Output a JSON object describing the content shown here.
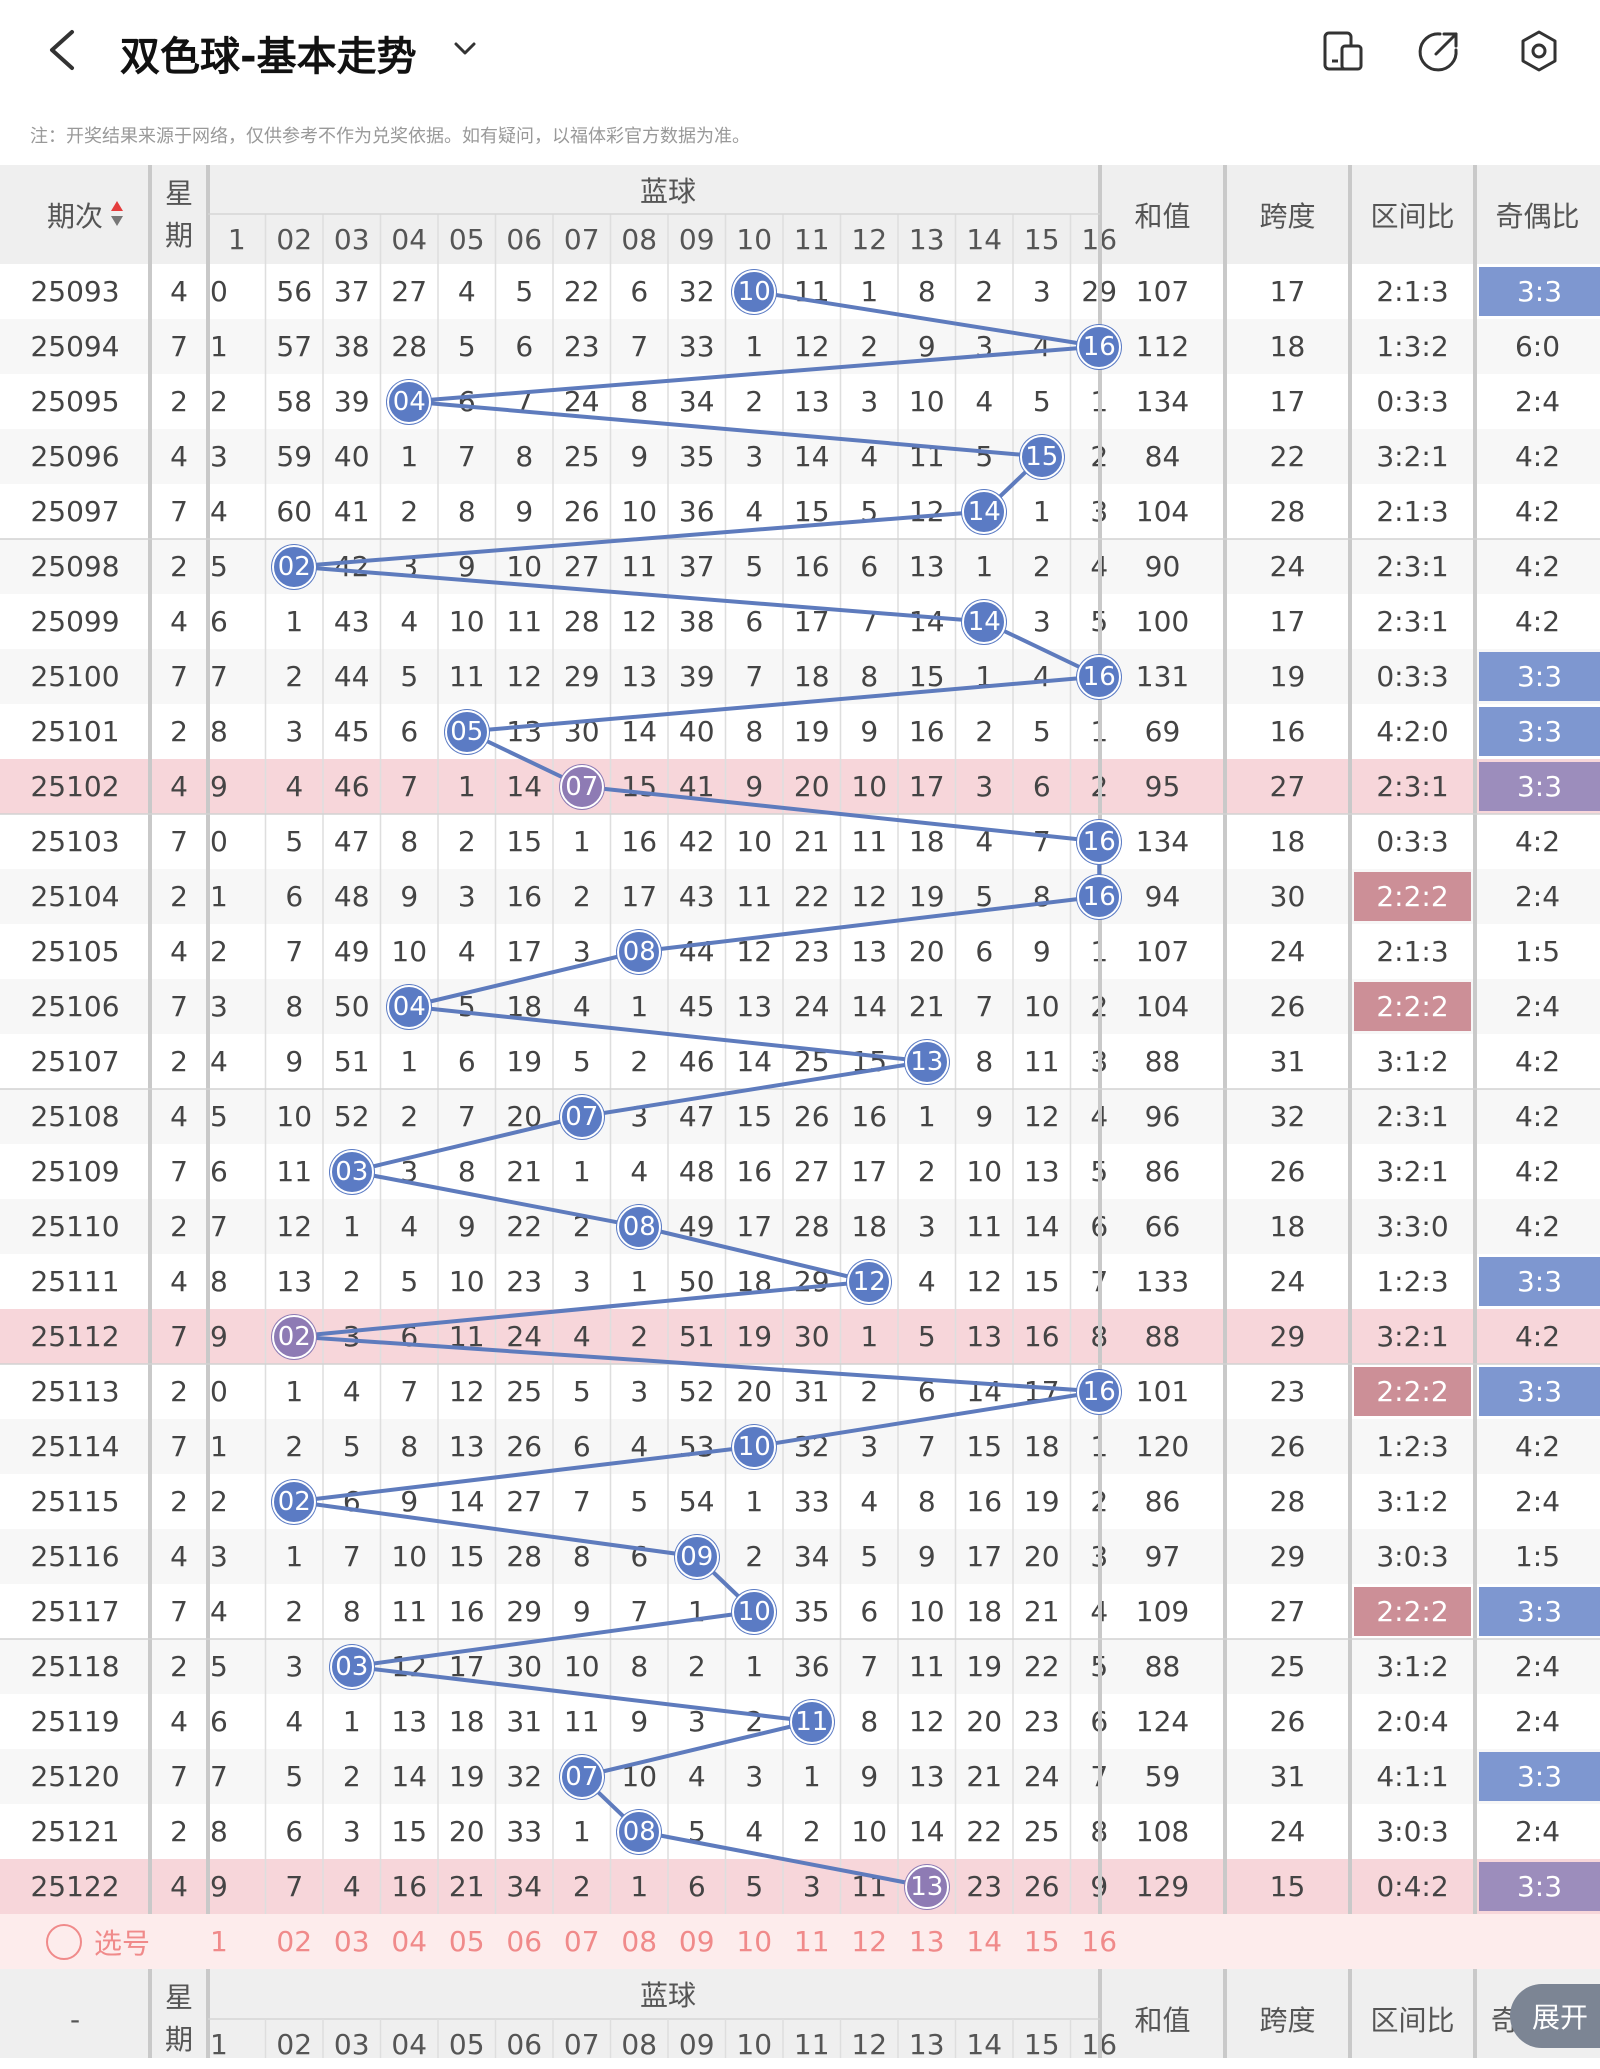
{
  "header": {
    "title": "双色球-基本走势",
    "icons": [
      "back-icon",
      "chevron-down-icon",
      "layout-icon",
      "share-icon",
      "settings-icon"
    ]
  },
  "note": "注：开奖结果来源于网络，仅供参考不作为兑奖依据。如有疑问，以福体彩官方数据为准。",
  "table": {
    "col_issue": "期次",
    "col_week": "星期",
    "blue_title": "蓝球",
    "ball_labels": [
      "1",
      "02",
      "03",
      "04",
      "05",
      "06",
      "07",
      "08",
      "09",
      "10",
      "11",
      "12",
      "13",
      "14",
      "15",
      "16"
    ],
    "col_sum": "和值",
    "col_span": "跨度",
    "col_zone": "区间比",
    "col_oddeven": "奇偶比",
    "rows": [
      {
        "issue": "25093",
        "week": "4",
        "cells": [
          "0",
          "56",
          "37",
          "27",
          "4",
          "5",
          "22",
          "6",
          "32",
          "10",
          "11",
          "1",
          "8",
          "2",
          "3",
          "29"
        ],
        "ball": 10,
        "sum": "107",
        "span": "17",
        "zone": "2:1:3",
        "oe": "3:3",
        "oe_hl": true,
        "zone_hl": false,
        "pink": false
      },
      {
        "issue": "25094",
        "week": "7",
        "cells": [
          "1",
          "57",
          "38",
          "28",
          "5",
          "6",
          "23",
          "7",
          "33",
          "1",
          "12",
          "2",
          "9",
          "3",
          "4",
          "16"
        ],
        "ball": 16,
        "sum": "112",
        "span": "18",
        "zone": "1:3:2",
        "oe": "6:0",
        "oe_hl": false,
        "zone_hl": false,
        "pink": false
      },
      {
        "issue": "25095",
        "week": "2",
        "cells": [
          "2",
          "58",
          "39",
          "04",
          "6",
          "7",
          "24",
          "8",
          "34",
          "2",
          "13",
          "3",
          "10",
          "4",
          "5",
          "1"
        ],
        "ball": 4,
        "sum": "134",
        "span": "17",
        "zone": "0:3:3",
        "oe": "2:4",
        "oe_hl": false,
        "zone_hl": false,
        "pink": false
      },
      {
        "issue": "25096",
        "week": "4",
        "cells": [
          "3",
          "59",
          "40",
          "1",
          "7",
          "8",
          "25",
          "9",
          "35",
          "3",
          "14",
          "4",
          "11",
          "5",
          "15",
          "2"
        ],
        "ball": 15,
        "sum": "84",
        "span": "22",
        "zone": "3:2:1",
        "oe": "4:2",
        "oe_hl": false,
        "zone_hl": false,
        "pink": false
      },
      {
        "issue": "25097",
        "week": "7",
        "cells": [
          "4",
          "60",
          "41",
          "2",
          "8",
          "9",
          "26",
          "10",
          "36",
          "4",
          "15",
          "5",
          "12",
          "14",
          "1",
          "3"
        ],
        "ball": 14,
        "sum": "104",
        "span": "28",
        "zone": "2:1:3",
        "oe": "4:2",
        "oe_hl": false,
        "zone_hl": false,
        "pink": false
      },
      {
        "issue": "25098",
        "week": "2",
        "cells": [
          "5",
          "02",
          "42",
          "3",
          "9",
          "10",
          "27",
          "11",
          "37",
          "5",
          "16",
          "6",
          "13",
          "1",
          "2",
          "4"
        ],
        "ball": 2,
        "sum": "90",
        "span": "24",
        "zone": "2:3:1",
        "oe": "4:2",
        "oe_hl": false,
        "zone_hl": false,
        "pink": false
      },
      {
        "issue": "25099",
        "week": "4",
        "cells": [
          "6",
          "1",
          "43",
          "4",
          "10",
          "11",
          "28",
          "12",
          "38",
          "6",
          "17",
          "7",
          "14",
          "14",
          "3",
          "5"
        ],
        "ball": 14,
        "sum": "100",
        "span": "17",
        "zone": "2:3:1",
        "oe": "4:2",
        "oe_hl": false,
        "zone_hl": false,
        "pink": false
      },
      {
        "issue": "25100",
        "week": "7",
        "cells": [
          "7",
          "2",
          "44",
          "5",
          "11",
          "12",
          "29",
          "13",
          "39",
          "7",
          "18",
          "8",
          "15",
          "1",
          "4",
          "16"
        ],
        "ball": 16,
        "sum": "131",
        "span": "19",
        "zone": "0:3:3",
        "oe": "3:3",
        "oe_hl": true,
        "zone_hl": false,
        "pink": false
      },
      {
        "issue": "25101",
        "week": "2",
        "cells": [
          "8",
          "3",
          "45",
          "6",
          "05",
          "13",
          "30",
          "14",
          "40",
          "8",
          "19",
          "9",
          "16",
          "2",
          "5",
          "1"
        ],
        "ball": 5,
        "sum": "69",
        "span": "16",
        "zone": "4:2:0",
        "oe": "3:3",
        "oe_hl": true,
        "zone_hl": false,
        "pink": false
      },
      {
        "issue": "25102",
        "week": "4",
        "cells": [
          "9",
          "4",
          "46",
          "7",
          "1",
          "14",
          "07",
          "15",
          "41",
          "9",
          "20",
          "10",
          "17",
          "3",
          "6",
          "2"
        ],
        "ball": 7,
        "sum": "95",
        "span": "27",
        "zone": "2:3:1",
        "oe": "3:3",
        "oe_hl": true,
        "zone_hl": false,
        "pink": true
      },
      {
        "issue": "25103",
        "week": "7",
        "cells": [
          "0",
          "5",
          "47",
          "8",
          "2",
          "15",
          "1",
          "16",
          "42",
          "10",
          "21",
          "11",
          "18",
          "4",
          "7",
          "16"
        ],
        "ball": 16,
        "sum": "134",
        "span": "18",
        "zone": "0:3:3",
        "oe": "4:2",
        "oe_hl": false,
        "zone_hl": false,
        "pink": false
      },
      {
        "issue": "25104",
        "week": "2",
        "cells": [
          "1",
          "6",
          "48",
          "9",
          "3",
          "16",
          "2",
          "17",
          "43",
          "11",
          "22",
          "12",
          "19",
          "5",
          "8",
          "16"
        ],
        "ball": 16,
        "sum": "94",
        "span": "30",
        "zone": "2:2:2",
        "oe": "2:4",
        "oe_hl": false,
        "zone_hl": true,
        "pink": false
      },
      {
        "issue": "25105",
        "week": "4",
        "cells": [
          "2",
          "7",
          "49",
          "10",
          "4",
          "17",
          "3",
          "08",
          "44",
          "12",
          "23",
          "13",
          "20",
          "6",
          "9",
          "1"
        ],
        "ball": 8,
        "sum": "107",
        "span": "24",
        "zone": "2:1:3",
        "oe": "1:5",
        "oe_hl": false,
        "zone_hl": false,
        "pink": false
      },
      {
        "issue": "25106",
        "week": "7",
        "cells": [
          "3",
          "8",
          "50",
          "04",
          "5",
          "18",
          "4",
          "1",
          "45",
          "13",
          "24",
          "14",
          "21",
          "7",
          "10",
          "2"
        ],
        "ball": 4,
        "sum": "104",
        "span": "26",
        "zone": "2:2:2",
        "oe": "2:4",
        "oe_hl": false,
        "zone_hl": true,
        "pink": false
      },
      {
        "issue": "25107",
        "week": "2",
        "cells": [
          "4",
          "9",
          "51",
          "1",
          "6",
          "19",
          "5",
          "2",
          "46",
          "14",
          "25",
          "15",
          "13",
          "8",
          "11",
          "3"
        ],
        "ball": 13,
        "sum": "88",
        "span": "31",
        "zone": "3:1:2",
        "oe": "4:2",
        "oe_hl": false,
        "zone_hl": false,
        "pink": false
      },
      {
        "issue": "25108",
        "week": "4",
        "cells": [
          "5",
          "10",
          "52",
          "2",
          "7",
          "20",
          "07",
          "3",
          "47",
          "15",
          "26",
          "16",
          "1",
          "9",
          "12",
          "4"
        ],
        "ball": 7,
        "sum": "96",
        "span": "32",
        "zone": "2:3:1",
        "oe": "4:2",
        "oe_hl": false,
        "zone_hl": false,
        "pink": false
      },
      {
        "issue": "25109",
        "week": "7",
        "cells": [
          "6",
          "11",
          "03",
          "3",
          "8",
          "21",
          "1",
          "4",
          "48",
          "16",
          "27",
          "17",
          "2",
          "10",
          "13",
          "5"
        ],
        "ball": 3,
        "sum": "86",
        "span": "26",
        "zone": "3:2:1",
        "oe": "4:2",
        "oe_hl": false,
        "zone_hl": false,
        "pink": false
      },
      {
        "issue": "25110",
        "week": "2",
        "cells": [
          "7",
          "12",
          "1",
          "4",
          "9",
          "22",
          "2",
          "08",
          "49",
          "17",
          "28",
          "18",
          "3",
          "11",
          "14",
          "6"
        ],
        "ball": 8,
        "sum": "66",
        "span": "18",
        "zone": "3:3:0",
        "oe": "4:2",
        "oe_hl": false,
        "zone_hl": false,
        "pink": false
      },
      {
        "issue": "25111",
        "week": "4",
        "cells": [
          "8",
          "13",
          "2",
          "5",
          "10",
          "23",
          "3",
          "1",
          "50",
          "18",
          "29",
          "12",
          "4",
          "12",
          "15",
          "7"
        ],
        "ball": 12,
        "sum": "133",
        "span": "24",
        "zone": "1:2:3",
        "oe": "3:3",
        "oe_hl": true,
        "zone_hl": false,
        "pink": false
      },
      {
        "issue": "25112",
        "week": "7",
        "cells": [
          "9",
          "02",
          "3",
          "6",
          "11",
          "24",
          "4",
          "2",
          "51",
          "19",
          "30",
          "1",
          "5",
          "13",
          "16",
          "8"
        ],
        "ball": 2,
        "sum": "88",
        "span": "29",
        "zone": "3:2:1",
        "oe": "4:2",
        "oe_hl": false,
        "zone_hl": false,
        "pink": true
      },
      {
        "issue": "25113",
        "week": "2",
        "cells": [
          "0",
          "1",
          "4",
          "7",
          "12",
          "25",
          "5",
          "3",
          "52",
          "20",
          "31",
          "2",
          "6",
          "14",
          "17",
          "16"
        ],
        "ball": 16,
        "sum": "101",
        "span": "23",
        "zone": "2:2:2",
        "oe": "3:3",
        "oe_hl": true,
        "zone_hl": true,
        "pink": false
      },
      {
        "issue": "25114",
        "week": "7",
        "cells": [
          "1",
          "2",
          "5",
          "8",
          "13",
          "26",
          "6",
          "4",
          "53",
          "10",
          "32",
          "3",
          "7",
          "15",
          "18",
          "1"
        ],
        "ball": 10,
        "sum": "120",
        "span": "26",
        "zone": "1:2:3",
        "oe": "4:2",
        "oe_hl": false,
        "zone_hl": false,
        "pink": false
      },
      {
        "issue": "25115",
        "week": "2",
        "cells": [
          "2",
          "02",
          "6",
          "9",
          "14",
          "27",
          "7",
          "5",
          "54",
          "1",
          "33",
          "4",
          "8",
          "16",
          "19",
          "2"
        ],
        "ball": 2,
        "sum": "86",
        "span": "28",
        "zone": "3:1:2",
        "oe": "2:4",
        "oe_hl": false,
        "zone_hl": false,
        "pink": false
      },
      {
        "issue": "25116",
        "week": "4",
        "cells": [
          "3",
          "1",
          "7",
          "10",
          "15",
          "28",
          "8",
          "6",
          "09",
          "2",
          "34",
          "5",
          "9",
          "17",
          "20",
          "3"
        ],
        "ball": 9,
        "sum": "97",
        "span": "29",
        "zone": "3:0:3",
        "oe": "1:5",
        "oe_hl": false,
        "zone_hl": false,
        "pink": false
      },
      {
        "issue": "25117",
        "week": "7",
        "cells": [
          "4",
          "2",
          "8",
          "11",
          "16",
          "29",
          "9",
          "7",
          "1",
          "10",
          "35",
          "6",
          "10",
          "18",
          "21",
          "4"
        ],
        "ball": 10,
        "sum": "109",
        "span": "27",
        "zone": "2:2:2",
        "oe": "3:3",
        "oe_hl": true,
        "zone_hl": true,
        "pink": false
      },
      {
        "issue": "25118",
        "week": "2",
        "cells": [
          "5",
          "3",
          "03",
          "12",
          "17",
          "30",
          "10",
          "8",
          "2",
          "1",
          "36",
          "7",
          "11",
          "19",
          "22",
          "5"
        ],
        "ball": 3,
        "sum": "88",
        "span": "25",
        "zone": "3:1:2",
        "oe": "2:4",
        "oe_hl": false,
        "zone_hl": false,
        "pink": false
      },
      {
        "issue": "25119",
        "week": "4",
        "cells": [
          "6",
          "4",
          "1",
          "13",
          "18",
          "31",
          "11",
          "9",
          "3",
          "2",
          "11",
          "8",
          "12",
          "20",
          "23",
          "6"
        ],
        "ball": 11,
        "sum": "124",
        "span": "26",
        "zone": "2:0:4",
        "oe": "2:4",
        "oe_hl": false,
        "zone_hl": false,
        "pink": false
      },
      {
        "issue": "25120",
        "week": "7",
        "cells": [
          "7",
          "5",
          "2",
          "14",
          "19",
          "32",
          "07",
          "10",
          "4",
          "3",
          "1",
          "9",
          "13",
          "21",
          "24",
          "7"
        ],
        "ball": 7,
        "sum": "59",
        "span": "31",
        "zone": "4:1:1",
        "oe": "3:3",
        "oe_hl": true,
        "zone_hl": false,
        "pink": false
      },
      {
        "issue": "25121",
        "week": "2",
        "cells": [
          "8",
          "6",
          "3",
          "15",
          "20",
          "33",
          "1",
          "08",
          "5",
          "4",
          "2",
          "10",
          "14",
          "22",
          "25",
          "8"
        ],
        "ball": 8,
        "sum": "108",
        "span": "24",
        "zone": "3:0:3",
        "oe": "2:4",
        "oe_hl": false,
        "zone_hl": false,
        "pink": false
      },
      {
        "issue": "25122",
        "week": "4",
        "cells": [
          "9",
          "7",
          "4",
          "16",
          "21",
          "34",
          "2",
          "1",
          "6",
          "5",
          "3",
          "11",
          "13",
          "23",
          "26",
          "9"
        ],
        "ball": 13,
        "sum": "129",
        "span": "15",
        "zone": "0:4:2",
        "oe": "3:3",
        "oe_hl": true,
        "zone_hl": false,
        "pink": true
      }
    ],
    "select_label": "选号",
    "footer_issue": "-",
    "footer_oddeven_partial": "奇"
  },
  "expand_label": "展开",
  "colors": {
    "blue_ball": "#5b7bc4",
    "blue_line": "#5e7bbd",
    "pink_row": "#f7d6da",
    "pink_ball": "#8e7bb4",
    "oe_hl": "#7e97d0",
    "oe_hl_pink": "#9c8dbc",
    "zone_hl": "#cc8f97",
    "select_row": "#fdecec",
    "header_bg": "#efefef"
  }
}
